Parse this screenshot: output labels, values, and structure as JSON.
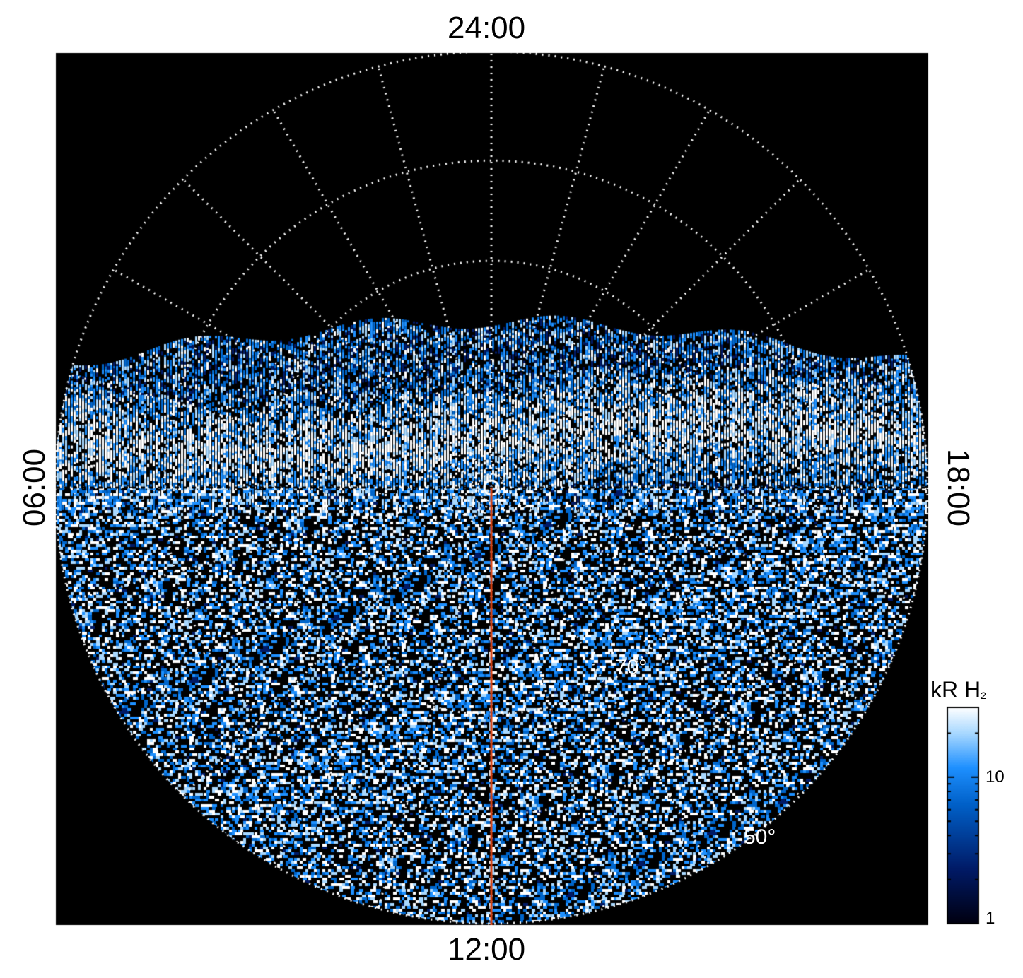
{
  "chart_data": {
    "type": "heatmap",
    "projection": "polar",
    "local_time_labels": {
      "top": "24:00",
      "bottom": "12:00",
      "left": "06:00",
      "right": "18:00"
    },
    "latitude_labels": [
      "70°",
      "50°"
    ],
    "colorbar": {
      "title": "kR H",
      "title_sub": "2",
      "scale": "log",
      "range": [
        1,
        30
      ],
      "ticks": [
        "10",
        "1"
      ]
    },
    "grid": true,
    "colormap": [
      "#000010",
      "#001a66",
      "#0066cc",
      "#1e90ff",
      "#a8d8ff",
      "#ffffff"
    ],
    "highlight_line_color": "#d94010"
  }
}
